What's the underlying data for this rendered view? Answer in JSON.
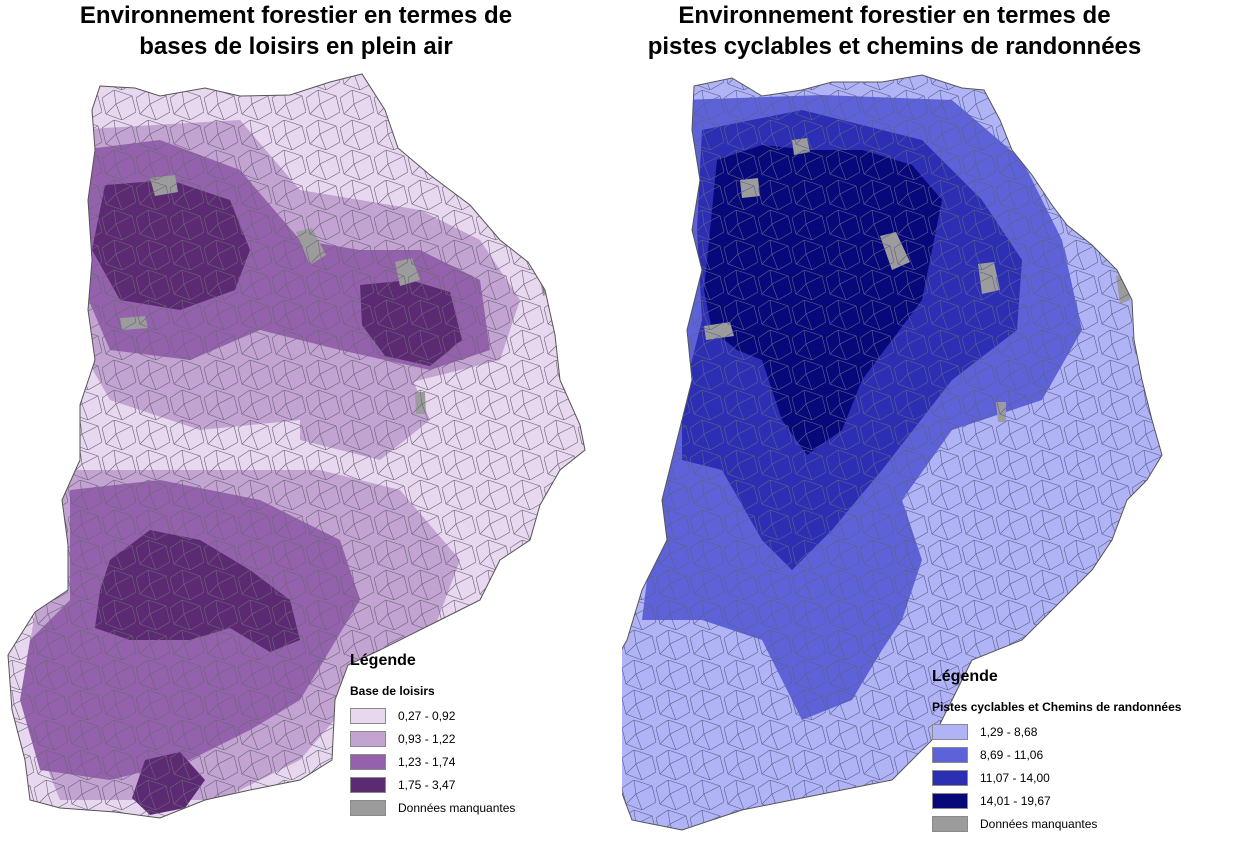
{
  "left_map": {
    "title_line1": "Environnement forestier en termes de",
    "title_line2": "bases de loisirs en plein air",
    "legend": {
      "title": "Légende",
      "subtitle": "Base de loisirs",
      "items": [
        {
          "label": "0,27 - 0,92",
          "color": "#e7d7ef"
        },
        {
          "label": "0,93 - 1,22",
          "color": "#c2a3d2"
        },
        {
          "label": "1,23 - 1,74",
          "color": "#9462ac"
        },
        {
          "label": "1,75 - 3,47",
          "color": "#5c2a72"
        },
        {
          "label": "Données manquantes",
          "color": "#9c9c9c"
        }
      ]
    }
  },
  "right_map": {
    "title_line1": "Environnement forestier en termes de",
    "title_line2": "pistes cyclables et chemins de randonnées",
    "legend": {
      "title": "Légende",
      "subtitle": "Pistes cyclables et Chemins de randonnées",
      "items": [
        {
          "label": "1,29 - 8,68",
          "color": "#b0b4f7"
        },
        {
          "label": "8,69 - 11,06",
          "color": "#5d62d8"
        },
        {
          "label": "11,07 - 14,00",
          "color": "#2c2fb4"
        },
        {
          "label": "14,01 - 19,67",
          "color": "#07087a"
        },
        {
          "label": "Données manquantes",
          "color": "#9c9c9c"
        }
      ]
    }
  }
}
